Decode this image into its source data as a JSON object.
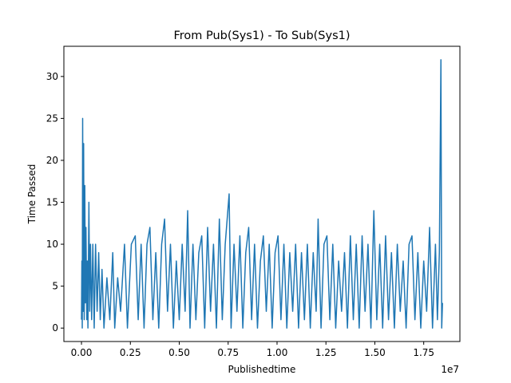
{
  "chart_data": {
    "type": "line",
    "title": "From Pub(Sys1) - To Sub(Sys1)",
    "xlabel": "Publishedtime",
    "ylabel": "Time Passed",
    "x_offset_text": "1e7",
    "xlim": [
      -900000,
      19350000
    ],
    "ylim": [
      -1.6,
      33.6
    ],
    "x_ticks": [
      0,
      2500000,
      5000000,
      7500000,
      10000000,
      12500000,
      15000000,
      17500000
    ],
    "x_tick_labels": [
      "0.00",
      "0.25",
      "0.50",
      "0.75",
      "1.00",
      "1.25",
      "1.50",
      "1.75"
    ],
    "y_ticks": [
      0,
      5,
      10,
      15,
      20,
      25,
      30
    ],
    "y_tick_labels": [
      "0",
      "5",
      "10",
      "15",
      "20",
      "25",
      "30"
    ],
    "grid": false,
    "color": "#1f77b4",
    "series": [
      {
        "name": "",
        "points": [
          [
            0,
            1
          ],
          [
            20000,
            8
          ],
          [
            40000,
            0
          ],
          [
            60000,
            25
          ],
          [
            90000,
            2
          ],
          [
            110000,
            22
          ],
          [
            140000,
            1
          ],
          [
            170000,
            17
          ],
          [
            200000,
            3
          ],
          [
            230000,
            12
          ],
          [
            270000,
            1
          ],
          [
            300000,
            8
          ],
          [
            330000,
            0
          ],
          [
            380000,
            15
          ],
          [
            420000,
            2
          ],
          [
            460000,
            10
          ],
          [
            520000,
            1
          ],
          [
            580000,
            10
          ],
          [
            650000,
            0
          ],
          [
            720000,
            10
          ],
          [
            800000,
            2
          ],
          [
            880000,
            9
          ],
          [
            960000,
            1
          ],
          [
            1050000,
            7
          ],
          [
            1150000,
            0
          ],
          [
            1300000,
            6
          ],
          [
            1450000,
            1
          ],
          [
            1600000,
            9
          ],
          [
            1700000,
            0
          ],
          [
            1850000,
            6
          ],
          [
            2000000,
            2
          ],
          [
            2200000,
            10
          ],
          [
            2350000,
            0
          ],
          [
            2550000,
            10
          ],
          [
            2750000,
            11
          ],
          [
            2900000,
            1
          ],
          [
            3050000,
            10
          ],
          [
            3200000,
            0
          ],
          [
            3350000,
            10
          ],
          [
            3500000,
            12
          ],
          [
            3650000,
            1
          ],
          [
            3800000,
            9
          ],
          [
            3950000,
            0
          ],
          [
            4100000,
            10
          ],
          [
            4250000,
            13
          ],
          [
            4400000,
            2
          ],
          [
            4550000,
            10
          ],
          [
            4700000,
            0
          ],
          [
            4850000,
            8
          ],
          [
            5000000,
            1
          ],
          [
            5150000,
            10
          ],
          [
            5300000,
            2
          ],
          [
            5430000,
            14
          ],
          [
            5550000,
            0
          ],
          [
            5700000,
            10
          ],
          [
            5850000,
            1
          ],
          [
            6000000,
            9
          ],
          [
            6150000,
            11
          ],
          [
            6300000,
            0
          ],
          [
            6450000,
            12
          ],
          [
            6600000,
            2
          ],
          [
            6750000,
            10
          ],
          [
            6900000,
            0
          ],
          [
            7050000,
            13
          ],
          [
            7200000,
            1
          ],
          [
            7350000,
            10
          ],
          [
            7550000,
            16
          ],
          [
            7650000,
            0
          ],
          [
            7800000,
            10
          ],
          [
            7950000,
            2
          ],
          [
            8100000,
            11
          ],
          [
            8250000,
            0
          ],
          [
            8400000,
            9
          ],
          [
            8550000,
            12
          ],
          [
            8700000,
            1
          ],
          [
            8850000,
            10
          ],
          [
            9000000,
            0
          ],
          [
            9150000,
            8
          ],
          [
            9300000,
            11
          ],
          [
            9450000,
            2
          ],
          [
            9600000,
            10
          ],
          [
            9750000,
            0
          ],
          [
            9900000,
            9
          ],
          [
            10050000,
            11
          ],
          [
            10200000,
            1
          ],
          [
            10350000,
            10
          ],
          [
            10500000,
            0
          ],
          [
            10650000,
            9
          ],
          [
            10800000,
            2
          ],
          [
            10950000,
            10
          ],
          [
            11100000,
            0
          ],
          [
            11250000,
            9
          ],
          [
            11400000,
            1
          ],
          [
            11550000,
            10
          ],
          [
            11700000,
            0
          ],
          [
            11850000,
            9
          ],
          [
            12000000,
            2
          ],
          [
            12100000,
            13
          ],
          [
            12250000,
            0
          ],
          [
            12400000,
            10
          ],
          [
            12550000,
            11
          ],
          [
            12700000,
            1
          ],
          [
            12850000,
            10
          ],
          [
            13000000,
            0
          ],
          [
            13150000,
            8
          ],
          [
            13300000,
            2
          ],
          [
            13450000,
            9
          ],
          [
            13600000,
            0
          ],
          [
            13750000,
            11
          ],
          [
            13900000,
            1
          ],
          [
            14050000,
            10
          ],
          [
            14200000,
            0
          ],
          [
            14350000,
            11
          ],
          [
            14500000,
            2
          ],
          [
            14650000,
            10
          ],
          [
            14800000,
            0
          ],
          [
            14950000,
            14
          ],
          [
            15100000,
            1
          ],
          [
            15250000,
            10
          ],
          [
            15400000,
            0
          ],
          [
            15550000,
            11
          ],
          [
            15700000,
            1
          ],
          [
            15850000,
            9
          ],
          [
            16000000,
            0
          ],
          [
            16150000,
            10
          ],
          [
            16300000,
            2
          ],
          [
            16450000,
            8
          ],
          [
            16600000,
            0
          ],
          [
            16750000,
            10
          ],
          [
            16900000,
            11
          ],
          [
            17050000,
            1
          ],
          [
            17200000,
            9
          ],
          [
            17350000,
            0
          ],
          [
            17500000,
            8
          ],
          [
            17650000,
            2
          ],
          [
            17800000,
            12
          ],
          [
            17950000,
            0
          ],
          [
            18100000,
            10
          ],
          [
            18200000,
            1
          ],
          [
            18300000,
            9
          ],
          [
            18380000,
            32
          ],
          [
            18420000,
            0
          ],
          [
            18460000,
            3
          ]
        ]
      }
    ]
  }
}
